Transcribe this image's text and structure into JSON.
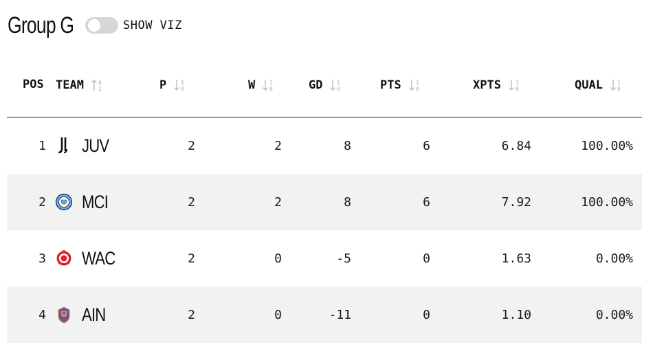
{
  "header": {
    "title": "Group G",
    "toggle_label": "SHOW VIZ",
    "toggle_on": false
  },
  "columns": [
    {
      "key": "pos",
      "label": "POS"
    },
    {
      "key": "team",
      "label": "TEAM"
    },
    {
      "key": "p",
      "label": "P"
    },
    {
      "key": "w",
      "label": "W"
    },
    {
      "key": "gd",
      "label": "GD"
    },
    {
      "key": "pts",
      "label": "PTS"
    },
    {
      "key": "xpts",
      "label": "XPTS"
    },
    {
      "key": "qual",
      "label": "QUAL"
    }
  ],
  "rows": [
    {
      "pos": "1",
      "team": "JUV",
      "crest": "juventus-crest-icon",
      "p": "2",
      "w": "2",
      "gd": "8",
      "pts": "6",
      "xpts": "6.84",
      "qual": "100.00%"
    },
    {
      "pos": "2",
      "team": "MCI",
      "crest": "manchester-city-crest-icon",
      "p": "2",
      "w": "2",
      "gd": "8",
      "pts": "6",
      "xpts": "7.92",
      "qual": "100.00%"
    },
    {
      "pos": "3",
      "team": "WAC",
      "crest": "wydad-crest-icon",
      "p": "2",
      "w": "0",
      "gd": "-5",
      "pts": "0",
      "xpts": "1.63",
      "qual": "0.00%"
    },
    {
      "pos": "4",
      "team": "AIN",
      "crest": "al-ain-crest-icon",
      "p": "2",
      "w": "0",
      "gd": "-11",
      "pts": "0",
      "xpts": "1.10",
      "qual": "0.00%"
    }
  ],
  "colors": {
    "row_alt": "#f2f2f2",
    "header_rule": "#2b1a3a",
    "toggle_track": "#d6d6d6",
    "sort_icon": "#c4c4c4"
  }
}
